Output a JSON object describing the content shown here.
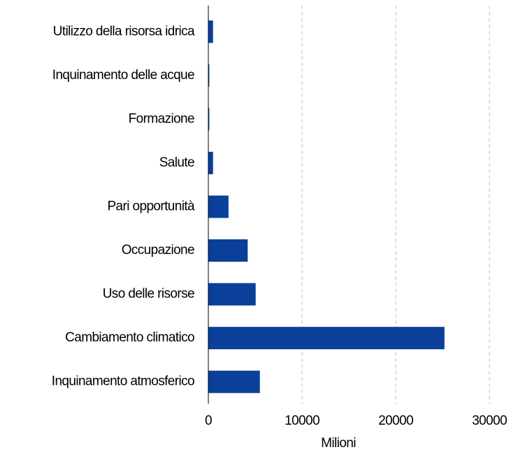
{
  "chart_data": {
    "type": "barh",
    "categories": [
      "Utilizzo della risorsa idrica",
      "Inquinamento delle acque",
      "Formazione",
      "Salute",
      "Pari opportunità",
      "Occupazione",
      "Uso delle risorse",
      "Cambiamento climatico",
      "Inquinamento atmosferico"
    ],
    "values": [
      500,
      100,
      100,
      500,
      2150,
      4200,
      5050,
      25200,
      5500
    ],
    "color": "#0a3f9a",
    "x_label": "Milioni",
    "xlim": [
      0,
      30000
    ],
    "xticks": [
      0,
      10000,
      20000,
      30000
    ],
    "grid": true
  }
}
